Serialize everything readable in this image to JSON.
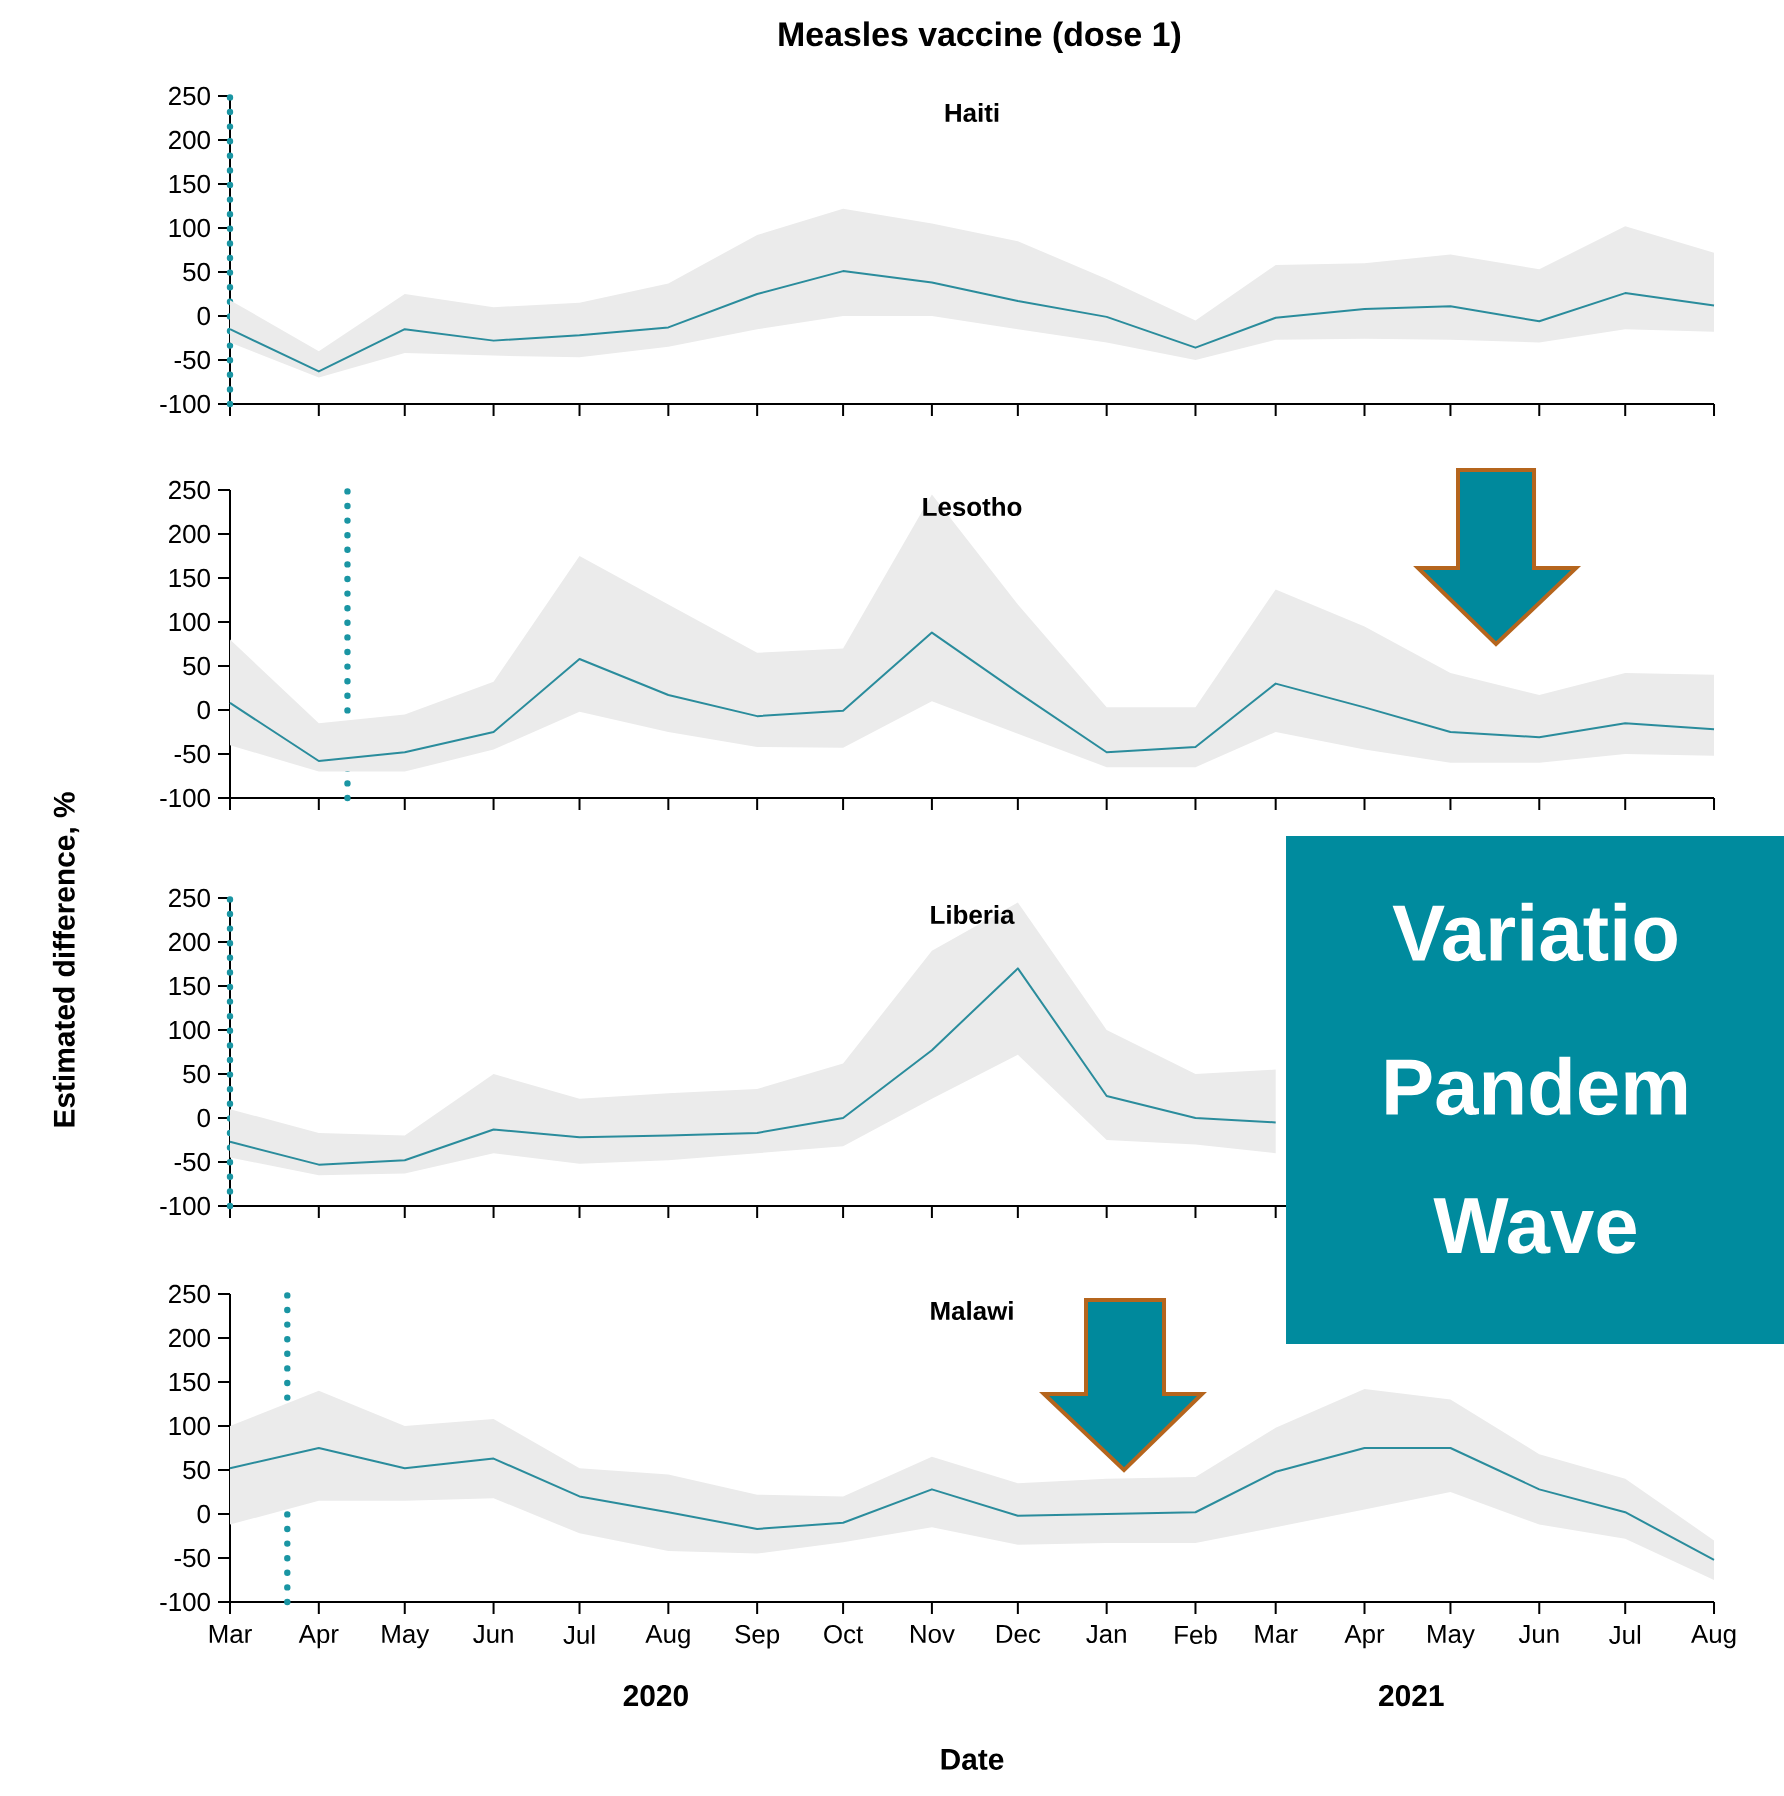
{
  "chart_data": [
    {
      "type": "line",
      "title": "Measles vaccine (dose 1)",
      "subtitle": "Haiti",
      "tick_labels": "y",
      "x": [
        "2020-03",
        "2020-04",
        "2020-05",
        "2020-06",
        "2020-07",
        "2020-08",
        "2020-09",
        "2020-10",
        "2020-11",
        "2020-12",
        "2021-01",
        "2021-02",
        "2021-03",
        "2021-04",
        "2021-05",
        "2021-06",
        "2021-07",
        "2021-08"
      ],
      "series": [
        {
          "color": "#2a8c9c",
          "values": [
            -15,
            -63,
            -15,
            -28,
            -22,
            -13,
            25,
            51,
            38,
            17,
            -1,
            -36,
            -2,
            8,
            11,
            -6,
            26,
            12
          ],
          "lower": [
            -30,
            -70,
            -42,
            -45,
            -47,
            -35,
            -15,
            0,
            0,
            -15,
            -30,
            -50,
            -27,
            -26,
            -27,
            -30,
            -15,
            -18
          ],
          "upper": [
            18,
            -40,
            25,
            10,
            15,
            37,
            92,
            122,
            105,
            85,
            42,
            -5,
            58,
            60,
            70,
            53,
            102,
            72
          ]
        }
      ],
      "xlim": [
        "2020-03",
        "2021-08"
      ],
      "xticks": [
        {
          "value": "2020-03",
          "label": null
        },
        {
          "value": "2020-04",
          "label": null
        },
        {
          "value": "2020-05",
          "label": null
        },
        {
          "value": "2020-06",
          "label": null
        },
        {
          "value": "2020-07",
          "label": null
        },
        {
          "value": "2020-08",
          "label": null
        },
        {
          "value": "2020-09",
          "label": null
        },
        {
          "value": "2020-10",
          "label": null
        },
        {
          "value": "2020-11",
          "label": null
        },
        {
          "value": "2020-12",
          "label": null
        },
        {
          "value": "2021-01",
          "label": null
        },
        {
          "value": "2021-02",
          "label": null
        },
        {
          "value": "2021-03",
          "label": null
        },
        {
          "value": "2021-04",
          "label": null
        },
        {
          "value": "2021-05",
          "label": null
        },
        {
          "value": "2021-06",
          "label": null
        },
        {
          "value": "2021-07",
          "label": null
        },
        {
          "value": "2021-08",
          "label": null
        }
      ],
      "ylim": [
        -100,
        250
      ],
      "yticks": [
        -100,
        -50,
        0,
        50,
        100,
        150,
        200,
        250
      ],
      "ref_lines": [
        {
          "axis": "x",
          "value": "2020-03-01",
          "color": "#1a95a3",
          "line_style": "dotted"
        }
      ]
    },
    {
      "type": "line",
      "subtitle": "Lesotho",
      "tick_labels": "y",
      "x": [
        "2020-03",
        "2020-04",
        "2020-05",
        "2020-06",
        "2020-07",
        "2020-08",
        "2020-09",
        "2020-10",
        "2020-11",
        "2020-12",
        "2021-01",
        "2021-02",
        "2021-03",
        "2021-04",
        "2021-05",
        "2021-06",
        "2021-07",
        "2021-08"
      ],
      "series": [
        {
          "color": "#2a8c9c",
          "values": [
            8,
            -58,
            -48,
            -25,
            58,
            17,
            -7,
            -1,
            88,
            20,
            -48,
            -42,
            30,
            3,
            -25,
            -31,
            -15,
            -22
          ],
          "lower": [
            -40,
            -70,
            -70,
            -45,
            -2,
            -25,
            -42,
            -43,
            10,
            -27,
            -65,
            -65,
            -25,
            -45,
            -60,
            -60,
            -50,
            -52
          ],
          "upper": [
            80,
            -15,
            -5,
            32,
            175,
            120,
            65,
            70,
            245,
            120,
            3,
            3,
            137,
            95,
            42,
            17,
            42,
            40
          ]
        }
      ],
      "xlim": [
        "2020-03",
        "2021-08"
      ],
      "xticks": [
        {
          "value": "2020-03",
          "label": null
        },
        {
          "value": "2020-04",
          "label": null
        },
        {
          "value": "2020-05",
          "label": null
        },
        {
          "value": "2020-06",
          "label": null
        },
        {
          "value": "2020-07",
          "label": null
        },
        {
          "value": "2020-08",
          "label": null
        },
        {
          "value": "2020-09",
          "label": null
        },
        {
          "value": "2020-10",
          "label": null
        },
        {
          "value": "2020-11",
          "label": null
        },
        {
          "value": "2020-12",
          "label": null
        },
        {
          "value": "2021-01",
          "label": null
        },
        {
          "value": "2021-02",
          "label": null
        },
        {
          "value": "2021-03",
          "label": null
        },
        {
          "value": "2021-04",
          "label": null
        },
        {
          "value": "2021-05",
          "label": null
        },
        {
          "value": "2021-06",
          "label": null
        },
        {
          "value": "2021-07",
          "label": null
        },
        {
          "value": "2021-08",
          "label": null
        }
      ],
      "ylim": [
        -100,
        250
      ],
      "yticks": [
        -100,
        -50,
        0,
        50,
        100,
        150,
        200,
        250
      ],
      "ref_lines": [
        {
          "axis": "x",
          "value": "2020-04-11",
          "color": "#1a95a3",
          "line_style": "dotted"
        }
      ]
    },
    {
      "type": "line",
      "subtitle": "Liberia",
      "ylabel": "Estimated difference, %",
      "tick_labels": "y",
      "annotations": [
        "Variatio",
        "Pandem",
        "Wave"
      ],
      "x": [
        "2020-03",
        "2020-04",
        "2020-05",
        "2020-06",
        "2020-07",
        "2020-08",
        "2020-09",
        "2020-10",
        "2020-11",
        "2020-12",
        "2021-01",
        "2021-02",
        "2021-03"
      ],
      "series": [
        {
          "color": "#2a8c9c",
          "values": [
            -27,
            -53,
            -48,
            -13,
            -22,
            -20,
            -17,
            0,
            77,
            170,
            25,
            0,
            -5
          ],
          "lower": [
            -45,
            -65,
            -63,
            -40,
            -52,
            -48,
            -40,
            -32,
            22,
            72,
            -25,
            -30,
            -40
          ],
          "upper": [
            10,
            -17,
            -20,
            50,
            22,
            28,
            33,
            62,
            190,
            245,
            100,
            50,
            55
          ]
        }
      ],
      "xlim": [
        "2020-03",
        "2021-08"
      ],
      "xticks": [
        {
          "value": "2020-03",
          "label": null
        },
        {
          "value": "2020-04",
          "label": null
        },
        {
          "value": "2020-05",
          "label": null
        },
        {
          "value": "2020-06",
          "label": null
        },
        {
          "value": "2020-07",
          "label": null
        },
        {
          "value": "2020-08",
          "label": null
        },
        {
          "value": "2020-09",
          "label": null
        },
        {
          "value": "2020-10",
          "label": null
        },
        {
          "value": "2020-11",
          "label": null
        },
        {
          "value": "2020-12",
          "label": null
        },
        {
          "value": "2021-01",
          "label": null
        },
        {
          "value": "2021-02",
          "label": null
        },
        {
          "value": "2021-03",
          "label": null
        },
        {
          "value": "2021-04",
          "label": null
        },
        {
          "value": "2021-05",
          "label": null
        },
        {
          "value": "2021-06",
          "label": null
        },
        {
          "value": "2021-07",
          "label": null
        },
        {
          "value": "2021-08",
          "label": null
        }
      ],
      "ylim": [
        -100,
        250
      ],
      "yticks": [
        -100,
        -50,
        0,
        50,
        100,
        150,
        200,
        250
      ],
      "ref_lines": [
        {
          "axis": "x",
          "value": "2020-03-01",
          "color": "#1a95a3",
          "line_style": "dotted"
        }
      ]
    },
    {
      "type": "line",
      "subtitle": "Malawi",
      "xlabel": "Date",
      "annotations": [
        "2020",
        "2021"
      ],
      "x": [
        "2020-03",
        "2020-04",
        "2020-05",
        "2020-06",
        "2020-07",
        "2020-08",
        "2020-09",
        "2020-10",
        "2020-11",
        "2020-12",
        "2021-01",
        "2021-02",
        "2021-03",
        "2021-04",
        "2021-05",
        "2021-06",
        "2021-07",
        "2021-08"
      ],
      "series": [
        {
          "color": "#2a8c9c",
          "values": [
            52,
            75,
            52,
            63,
            20,
            2,
            -17,
            -10,
            28,
            -2,
            0,
            2,
            48,
            75,
            75,
            28,
            2,
            -52
          ],
          "lower": [
            -12,
            15,
            15,
            18,
            -22,
            -42,
            -45,
            -32,
            -15,
            -35,
            -33,
            -33,
            -15,
            5,
            25,
            -12,
            -28,
            -75
          ],
          "upper": [
            100,
            140,
            100,
            108,
            52,
            45,
            22,
            20,
            65,
            35,
            40,
            42,
            98,
            142,
            130,
            68,
            40,
            -30
          ]
        }
      ],
      "xlim": [
        "2020-03",
        "2021-08"
      ],
      "xticks": [
        {
          "value": "2020-03",
          "label": "Mar"
        },
        {
          "value": "2020-04",
          "label": "Apr"
        },
        {
          "value": "2020-05",
          "label": "May"
        },
        {
          "value": "2020-06",
          "label": "Jun"
        },
        {
          "value": "2020-07",
          "label": "Jul"
        },
        {
          "value": "2020-08",
          "label": "Aug"
        },
        {
          "value": "2020-09",
          "label": "Sep"
        },
        {
          "value": "2020-10",
          "label": "Oct"
        },
        {
          "value": "2020-11",
          "label": "Nov"
        },
        {
          "value": "2020-12",
          "label": "Dec"
        },
        {
          "value": "2021-01",
          "label": "Jan"
        },
        {
          "value": "2021-02",
          "label": "Feb"
        },
        {
          "value": "2021-03",
          "label": "Mar"
        },
        {
          "value": "2021-04",
          "label": "Apr"
        },
        {
          "value": "2021-05",
          "label": "May"
        },
        {
          "value": "2021-06",
          "label": "Jun"
        },
        {
          "value": "2021-07",
          "label": "Jul"
        },
        {
          "value": "2021-08",
          "label": "Aug"
        }
      ],
      "ylim": [
        -100,
        250
      ],
      "yticks": [
        -100,
        -50,
        0,
        50,
        100,
        150,
        200,
        250
      ],
      "ref_lines": [
        {
          "axis": "x",
          "value": "2020-03-21",
          "color": "#1a95a3",
          "line_style": "dotted"
        }
      ]
    }
  ]
}
